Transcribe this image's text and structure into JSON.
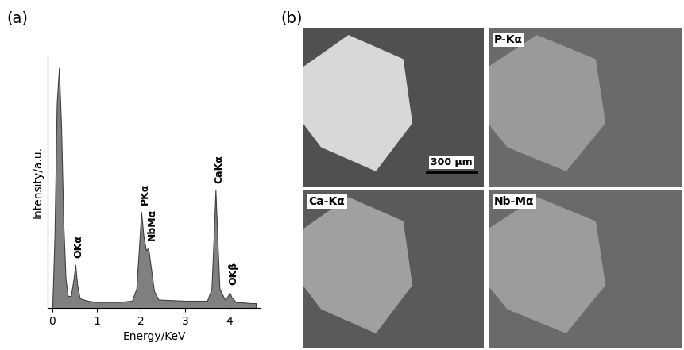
{
  "chart_data": {
    "type": "area",
    "color": "#808080",
    "x_label": "Energy/KeV",
    "y_label": "Intensity/a.u.",
    "x": [
      0.0,
      0.05,
      0.1,
      0.15,
      0.2,
      0.25,
      0.3,
      0.35,
      0.42,
      0.48,
      0.52,
      0.56,
      0.62,
      0.8,
      1.0,
      1.5,
      1.8,
      1.9,
      1.96,
      2.01,
      2.06,
      2.12,
      2.17,
      2.22,
      2.3,
      2.4,
      3.0,
      3.5,
      3.6,
      3.65,
      3.69,
      3.73,
      3.78,
      3.9,
      3.97,
      4.01,
      4.05,
      4.15,
      4.5,
      4.6
    ],
    "values": [
      0.0,
      0.3,
      0.85,
      1.0,
      0.75,
      0.35,
      0.12,
      0.05,
      0.05,
      0.12,
      0.18,
      0.1,
      0.04,
      0.03,
      0.025,
      0.025,
      0.03,
      0.08,
      0.25,
      0.4,
      0.3,
      0.24,
      0.25,
      0.18,
      0.07,
      0.035,
      0.03,
      0.03,
      0.08,
      0.3,
      0.49,
      0.3,
      0.08,
      0.035,
      0.05,
      0.065,
      0.045,
      0.025,
      0.02,
      0.02
    ],
    "xlim": [
      -0.1,
      4.7
    ],
    "xticks": [
      0,
      1,
      2,
      3,
      4
    ],
    "ylim": [
      0,
      1.05
    ],
    "tick_labels": "x",
    "annotations": [
      {
        "text": "OKα",
        "x": 0.52
      },
      {
        "text": "PKα",
        "x": 2.01
      },
      {
        "text": "NbMα",
        "x": 2.17
      },
      {
        "text": "CaKα",
        "x": 3.69
      },
      {
        "text": "OKβ",
        "x": 4.01
      }
    ]
  },
  "panel_labels": [
    "(a)",
    "(b)"
  ],
  "maps": {
    "labels": [
      null,
      "P-Kα",
      "Ca-Kα",
      "Nb-Mα"
    ],
    "scale_bar": "300 μm"
  }
}
